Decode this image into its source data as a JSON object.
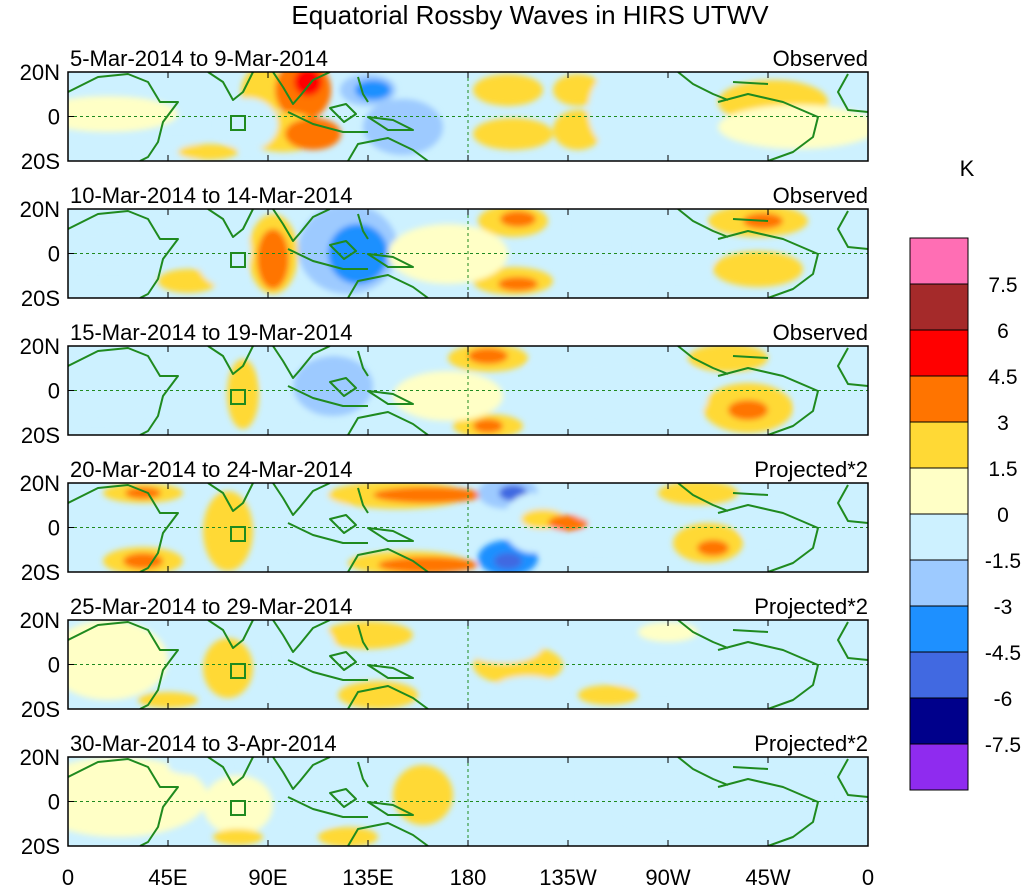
{
  "title": "Equatorial Rossby Waves in HIRS UTWV",
  "panels": [
    {
      "date_range": "5-Mar-2014 to 9-Mar-2014",
      "type": "Observed"
    },
    {
      "date_range": "10-Mar-2014 to 14-Mar-2014",
      "type": "Observed"
    },
    {
      "date_range": "15-Mar-2014 to 19-Mar-2014",
      "type": "Observed"
    },
    {
      "date_range": "20-Mar-2014 to 24-Mar-2014",
      "type": "Projected*2"
    },
    {
      "date_range": "25-Mar-2014 to 29-Mar-2014",
      "type": "Projected*2"
    },
    {
      "date_range": "30-Mar-2014 to 3-Apr-2014",
      "type": "Projected*2"
    }
  ],
  "lat_labels": [
    "20N",
    "0",
    "20S"
  ],
  "lon_labels": [
    "0",
    "45E",
    "90E",
    "135E",
    "180",
    "135W",
    "90W",
    "45W",
    "0"
  ],
  "colorbar": {
    "unit": "K",
    "labels": [
      "7.5",
      "6",
      "4.5",
      "3",
      "1.5",
      "0",
      "-1.5",
      "-3",
      "-4.5",
      "-6",
      "-7.5"
    ],
    "colors": [
      "#ff6eb4",
      "#a52a2a",
      "#ff0000",
      "#ff7400",
      "#ffd935",
      "#ffffc6",
      "#cdf1ff",
      "#9dcaff",
      "#1e90ff",
      "#4169e1",
      "#00008b",
      "#8f2bef"
    ]
  },
  "colors": {
    "coast": "#1f8a1f",
    "frame": "#000000",
    "guide": "#1f8a1f"
  }
}
